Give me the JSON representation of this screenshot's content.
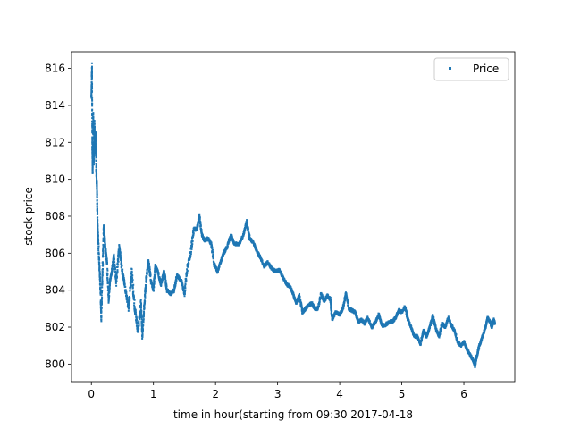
{
  "chart_data": {
    "type": "scatter",
    "title": "",
    "xlabel": "time in hour(starting from 09:30 2017-04-18",
    "ylabel": "stock price",
    "xlim": [
      -0.32,
      6.82
    ],
    "ylim": [
      799.05,
      816.9
    ],
    "xticks": [
      0,
      1,
      2,
      3,
      4,
      5,
      6
    ],
    "yticks": [
      800,
      802,
      804,
      806,
      808,
      810,
      812,
      814,
      816
    ],
    "grid": false,
    "legend": {
      "position": "top-right",
      "entries": [
        "Price"
      ]
    },
    "colors": {
      "series": "#1f77b4"
    },
    "series": [
      {
        "name": "Price",
        "points": [
          [
            0.0,
            814.5
          ],
          [
            0.01,
            816.0
          ],
          [
            0.015,
            812.0
          ],
          [
            0.02,
            810.5
          ],
          [
            0.03,
            813.5
          ],
          [
            0.04,
            811.0
          ],
          [
            0.05,
            813.0
          ],
          [
            0.06,
            811.5
          ],
          [
            0.07,
            812.5
          ],
          [
            0.08,
            810.5
          ],
          [
            0.09,
            809.5
          ],
          [
            0.1,
            807.5
          ],
          [
            0.12,
            806.0
          ],
          [
            0.14,
            804.5
          ],
          [
            0.16,
            802.6
          ],
          [
            0.18,
            805.0
          ],
          [
            0.2,
            807.5
          ],
          [
            0.22,
            806.5
          ],
          [
            0.25,
            805.5
          ],
          [
            0.28,
            803.5
          ],
          [
            0.3,
            804.5
          ],
          [
            0.33,
            805.0
          ],
          [
            0.36,
            805.8
          ],
          [
            0.4,
            804.5
          ],
          [
            0.45,
            806.3
          ],
          [
            0.5,
            805.0
          ],
          [
            0.55,
            804.0
          ],
          [
            0.6,
            803.0
          ],
          [
            0.65,
            805.0
          ],
          [
            0.7,
            803.0
          ],
          [
            0.75,
            801.8
          ],
          [
            0.8,
            803.3
          ],
          [
            0.82,
            801.5
          ],
          [
            0.85,
            803.0
          ],
          [
            0.88,
            804.5
          ],
          [
            0.92,
            805.6
          ],
          [
            0.96,
            804.5
          ],
          [
            1.0,
            804.0
          ],
          [
            1.03,
            805.3
          ],
          [
            1.07,
            805.0
          ],
          [
            1.12,
            804.3
          ],
          [
            1.17,
            805.0
          ],
          [
            1.22,
            804.0
          ],
          [
            1.28,
            803.8
          ],
          [
            1.33,
            804.0
          ],
          [
            1.38,
            804.8
          ],
          [
            1.45,
            804.5
          ],
          [
            1.5,
            803.8
          ],
          [
            1.55,
            805.3
          ],
          [
            1.6,
            806.0
          ],
          [
            1.65,
            807.3
          ],
          [
            1.7,
            807.3
          ],
          [
            1.74,
            808.0
          ],
          [
            1.78,
            807.0
          ],
          [
            1.82,
            806.7
          ],
          [
            1.88,
            806.8
          ],
          [
            1.93,
            806.5
          ],
          [
            1.98,
            805.4
          ],
          [
            2.03,
            805.0
          ],
          [
            2.08,
            805.5
          ],
          [
            2.13,
            806.0
          ],
          [
            2.18,
            806.3
          ],
          [
            2.25,
            807.0
          ],
          [
            2.3,
            806.5
          ],
          [
            2.38,
            806.5
          ],
          [
            2.45,
            807.0
          ],
          [
            2.5,
            807.7
          ],
          [
            2.55,
            806.8
          ],
          [
            2.62,
            806.5
          ],
          [
            2.68,
            806.0
          ],
          [
            2.72,
            805.8
          ],
          [
            2.78,
            805.3
          ],
          [
            2.84,
            805.5
          ],
          [
            2.9,
            805.2
          ],
          [
            2.97,
            805.0
          ],
          [
            3.03,
            805.1
          ],
          [
            3.1,
            804.6
          ],
          [
            3.15,
            804.3
          ],
          [
            3.2,
            804.2
          ],
          [
            3.25,
            803.8
          ],
          [
            3.3,
            803.3
          ],
          [
            3.35,
            803.7
          ],
          [
            3.4,
            802.8
          ],
          [
            3.45,
            803.0
          ],
          [
            3.5,
            803.2
          ],
          [
            3.55,
            803.3
          ],
          [
            3.6,
            803.0
          ],
          [
            3.65,
            803.0
          ],
          [
            3.7,
            803.8
          ],
          [
            3.75,
            803.4
          ],
          [
            3.8,
            803.7
          ],
          [
            3.85,
            803.5
          ],
          [
            3.88,
            802.4
          ],
          [
            3.93,
            802.8
          ],
          [
            4.0,
            802.7
          ],
          [
            4.05,
            803.0
          ],
          [
            4.1,
            803.8
          ],
          [
            4.15,
            803.0
          ],
          [
            4.2,
            802.9
          ],
          [
            4.25,
            802.8
          ],
          [
            4.3,
            802.3
          ],
          [
            4.35,
            802.4
          ],
          [
            4.4,
            802.2
          ],
          [
            4.45,
            802.5
          ],
          [
            4.52,
            802.0
          ],
          [
            4.58,
            802.3
          ],
          [
            4.63,
            802.7
          ],
          [
            4.68,
            802.1
          ],
          [
            4.73,
            802.1
          ],
          [
            4.8,
            802.3
          ],
          [
            4.85,
            802.3
          ],
          [
            4.9,
            802.5
          ],
          [
            4.95,
            802.9
          ],
          [
            5.0,
            802.8
          ],
          [
            5.05,
            803.1
          ],
          [
            5.1,
            802.4
          ],
          [
            5.15,
            802.0
          ],
          [
            5.2,
            801.5
          ],
          [
            5.25,
            801.5
          ],
          [
            5.3,
            801.1
          ],
          [
            5.35,
            801.8
          ],
          [
            5.4,
            801.5
          ],
          [
            5.45,
            802.0
          ],
          [
            5.5,
            802.6
          ],
          [
            5.55,
            801.9
          ],
          [
            5.6,
            801.5
          ],
          [
            5.65,
            802.2
          ],
          [
            5.7,
            802.0
          ],
          [
            5.75,
            802.5
          ],
          [
            5.8,
            802.1
          ],
          [
            5.85,
            801.8
          ],
          [
            5.9,
            801.2
          ],
          [
            5.95,
            801.0
          ],
          [
            6.0,
            801.2
          ],
          [
            6.05,
            800.8
          ],
          [
            6.1,
            800.5
          ],
          [
            6.15,
            800.2
          ],
          [
            6.18,
            799.9
          ],
          [
            6.2,
            800.3
          ],
          [
            6.25,
            801.0
          ],
          [
            6.3,
            801.5
          ],
          [
            6.35,
            802.0
          ],
          [
            6.38,
            802.5
          ],
          [
            6.42,
            802.3
          ],
          [
            6.45,
            802.0
          ],
          [
            6.48,
            802.4
          ],
          [
            6.5,
            802.2
          ]
        ]
      }
    ]
  }
}
